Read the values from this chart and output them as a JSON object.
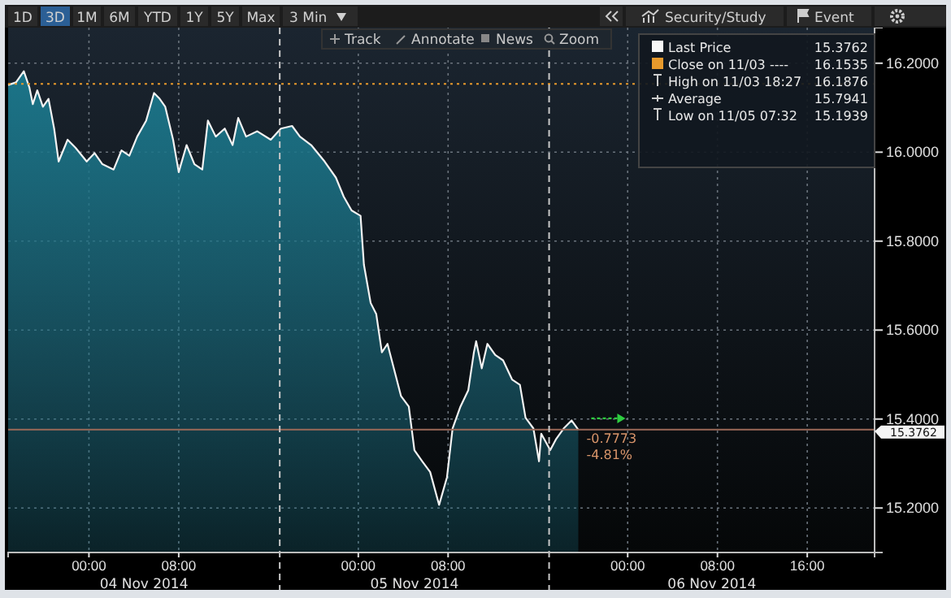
{
  "chart_data": {
    "type": "area",
    "x": [
      "2014-11-03T16:48",
      "2014-11-03T17:30",
      "2014-11-03T18:12",
      "2014-11-03T18:42",
      "2014-11-03T19:00",
      "2014-11-03T19:24",
      "2014-11-03T19:54",
      "2014-11-03T20:24",
      "2014-11-03T20:54",
      "2014-11-03T21:18",
      "2014-11-03T22:06",
      "2014-11-03T22:48",
      "2014-11-03T23:48",
      "2014-11-04T00:30",
      "2014-11-04T01:12",
      "2014-11-04T02:12",
      "2014-11-04T02:54",
      "2014-11-04T03:36",
      "2014-11-04T04:18",
      "2014-11-04T05:06",
      "2014-11-04T05:48",
      "2014-11-04T06:18",
      "2014-11-04T06:48",
      "2014-11-04T07:30",
      "2014-11-04T08:00",
      "2014-11-04T08:42",
      "2014-11-04T09:24",
      "2014-11-04T10:06",
      "2014-11-04T10:36",
      "2014-11-04T11:18",
      "2014-11-04T12:06",
      "2014-11-04T12:48",
      "2014-11-04T13:18",
      "2014-11-04T14:00",
      "2014-11-04T15:00",
      "2014-11-04T16:12",
      "2014-11-04T17:06",
      "2014-11-04T18:06",
      "2014-11-04T18:48",
      "2014-11-04T19:48",
      "2014-11-04T21:00",
      "2014-11-04T22:00",
      "2014-11-04T22:42",
      "2014-11-04T23:24",
      "2014-11-05T00:12",
      "2014-11-05T00:30",
      "2014-11-05T01:06",
      "2014-11-05T01:36",
      "2014-11-05T02:06",
      "2014-11-05T02:36",
      "2014-11-05T03:18",
      "2014-11-05T03:48",
      "2014-11-05T04:30",
      "2014-11-05T05:00",
      "2014-11-05T05:42",
      "2014-11-05T06:24",
      "2014-11-05T07:12",
      "2014-11-05T07:54",
      "2014-11-05T08:24",
      "2014-11-05T09:06",
      "2014-11-05T09:48",
      "2014-11-05T10:18",
      "2014-11-05T10:30",
      "2014-11-05T11:00",
      "2014-11-05T11:30",
      "2014-11-05T12:12",
      "2014-11-05T12:54",
      "2014-11-05T13:42",
      "2014-11-05T14:24",
      "2014-11-05T14:54",
      "2014-11-05T15:36",
      "2014-11-05T16:06",
      "2014-11-05T16:18",
      "2014-11-05T17:06",
      "2014-11-05T17:36",
      "2014-11-05T18:18",
      "2014-11-05T19:00",
      "2014-11-05T19:36"
    ],
    "series": [
      {
        "name": "Last Price",
        "color": "#1b7488",
        "values": [
          16.151,
          16.157,
          16.182,
          16.145,
          16.108,
          16.139,
          16.102,
          16.12,
          16.053,
          15.979,
          16.028,
          16.01,
          15.979,
          15.998,
          15.973,
          15.961,
          16.004,
          15.992,
          16.035,
          16.071,
          16.133,
          16.12,
          16.102,
          16.028,
          15.955,
          16.016,
          15.973,
          15.961,
          16.071,
          16.035,
          16.053,
          16.016,
          16.077,
          16.035,
          16.047,
          16.028,
          16.053,
          16.059,
          16.035,
          16.016,
          15.979,
          15.943,
          15.9,
          15.869,
          15.857,
          15.747,
          15.661,
          15.636,
          15.55,
          15.569,
          15.501,
          15.452,
          15.428,
          15.33,
          15.305,
          15.281,
          15.207,
          15.269,
          15.379,
          15.428,
          15.465,
          15.55,
          15.575,
          15.514,
          15.569,
          15.544,
          15.532,
          15.489,
          15.477,
          15.403,
          15.379,
          15.305,
          15.367,
          15.33,
          15.354,
          15.379,
          15.397,
          15.376
        ]
      }
    ],
    "xlim": [
      "2014-11-03T16:48",
      "2014-11-06T22:00"
    ],
    "xticks": [
      {
        "value": "2014-11-04T00:00",
        "label": "00:00"
      },
      {
        "value": "2014-11-04T08:00",
        "label": "08:00"
      },
      {
        "value": "2014-11-05T00:00",
        "label": "00:00"
      },
      {
        "value": "2014-11-05T08:00",
        "label": "08:00"
      },
      {
        "value": "2014-11-06T00:00",
        "label": "00:00"
      },
      {
        "value": "2014-11-06T08:00",
        "label": "08:00"
      },
      {
        "value": "2014-11-06T16:00",
        "label": "16:00"
      }
    ],
    "ylim": [
      15.1,
      16.28
    ],
    "yticks": [
      {
        "value": 15.2,
        "label": "15.2000"
      },
      {
        "value": 15.4,
        "label": "15.4000"
      },
      {
        "value": 15.6,
        "label": "15.6000"
      },
      {
        "value": 15.8,
        "label": "15.8000"
      },
      {
        "value": 16.0,
        "label": "16.0000"
      },
      {
        "value": 16.2,
        "label": "16.2000"
      }
    ],
    "grid": true,
    "legend": "top right",
    "ref_lines": [
      {
        "axis": "y",
        "value": 16.1535,
        "label": "Close on 11/03 ----",
        "color": "#e89a2c",
        "line_style": "dotted"
      },
      {
        "axis": "y",
        "value": 15.3762,
        "label": "15.3762",
        "color": "#9c6a58",
        "line_style": "solid"
      },
      {
        "axis": "x",
        "value": "2014-11-04T17:00",
        "color": "#c8c8c8",
        "line_style": "dashed"
      },
      {
        "axis": "x",
        "value": "2014-11-05T17:00",
        "color": "#c8c8c8",
        "line_style": "dashed"
      }
    ],
    "annotations": [
      "1D",
      "3D",
      "1M",
      "6M",
      "YTD",
      "1Y",
      "5Y",
      "Max",
      "3 Min",
      "Track",
      "Annotate",
      "News",
      "Zoom",
      "Security/Study",
      "Event",
      "15.3762",
      "High on 11/03 18:27",
      "16.1876",
      "Average",
      "15.7941",
      "Low on 11/05 07:32",
      "15.1939",
      "-0.7773",
      "-4.81%",
      "04 Nov 2014",
      "05 Nov 2014",
      "06 Nov 2014",
      "16.1535"
    ]
  }
}
